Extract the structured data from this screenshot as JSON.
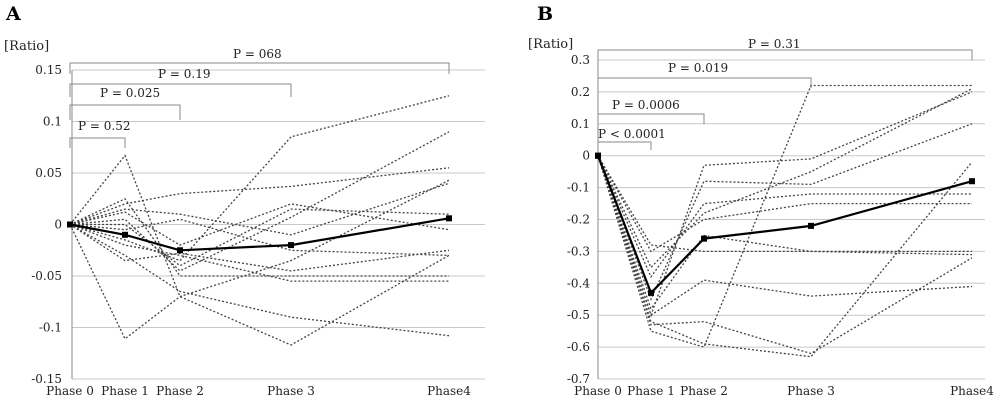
{
  "chart_data": [
    {
      "type": "line",
      "panel_label": "A",
      "ylabel": "[Ratio]",
      "categories": [
        "Phase 0",
        "Phase 1",
        "Phase 2",
        "Phase 3",
        "Phase4"
      ],
      "ylim": [
        -0.15,
        0.15
      ],
      "yticks": [
        -0.15,
        -0.1,
        -0.05,
        0,
        0.05,
        0.1,
        0.15
      ],
      "grid": true,
      "comparisons": [
        {
          "label": "P = 0.52",
          "to": 1
        },
        {
          "label": "P = 0.025",
          "to": 2
        },
        {
          "label": "P = 0.19",
          "to": 3
        },
        {
          "label": "P = 068",
          "to": 4
        }
      ],
      "series": [
        {
          "values": [
            0,
            0.067,
            -0.07,
            -0.117,
            -0.03
          ],
          "style": "dotted"
        },
        {
          "values": [
            0,
            -0.111,
            -0.07,
            -0.035,
            0.043
          ],
          "style": "dotted"
        },
        {
          "values": [
            0,
            0.025,
            -0.05,
            -0.05,
            -0.05
          ],
          "style": "dotted"
        },
        {
          "values": [
            0,
            0.02,
            0.03,
            0.037,
            0.055
          ],
          "style": "dotted"
        },
        {
          "values": [
            0,
            -0.015,
            -0.035,
            0.085,
            0.125
          ],
          "style": "dotted"
        },
        {
          "values": [
            0,
            0.005,
            -0.045,
            0.007,
            0.09
          ],
          "style": "dotted"
        },
        {
          "values": [
            0,
            -0.02,
            -0.03,
            -0.055,
            -0.055
          ],
          "style": "dotted"
        },
        {
          "values": [
            0,
            -0.03,
            -0.065,
            -0.09,
            -0.108
          ],
          "style": "dotted"
        },
        {
          "values": [
            0,
            0.012,
            -0.02,
            0.02,
            -0.005
          ],
          "style": "dotted"
        },
        {
          "values": [
            0,
            -0.005,
            0.005,
            -0.025,
            -0.03
          ],
          "style": "dotted"
        },
        {
          "values": [
            0,
            0.015,
            0.01,
            -0.01,
            0.04
          ],
          "style": "dotted"
        },
        {
          "values": [
            0,
            -0.035,
            -0.028,
            -0.045,
            -0.025
          ],
          "style": "dotted"
        },
        {
          "values": [
            0,
            0.0,
            -0.04,
            0.015,
            0.01
          ],
          "style": "dotted"
        },
        {
          "values": [
            0,
            -0.01,
            -0.025,
            -0.02,
            0.006
          ],
          "style": "solid-mean"
        }
      ]
    },
    {
      "type": "line",
      "panel_label": "B",
      "ylabel": "[Ratio]",
      "categories": [
        "Phase 0",
        "Phase 1",
        "Phase 2",
        "Phase 3",
        "Phase4"
      ],
      "ylim": [
        -0.7,
        0.3
      ],
      "yticks": [
        -0.7,
        -0.6,
        -0.5,
        -0.4,
        -0.3,
        -0.2,
        -0.1,
        0,
        0.1,
        0.2,
        0.3
      ],
      "grid": true,
      "comparisons": [
        {
          "label": "P < 0.0001",
          "to": 1
        },
        {
          "label": "P = 0.0006",
          "to": 2
        },
        {
          "label": "P = 0.019",
          "to": 3
        },
        {
          "label": "P = 0.31",
          "to": 4
        }
      ],
      "series": [
        {
          "values": [
            0,
            -0.55,
            -0.6,
            0.22,
            0.22
          ],
          "style": "dotted"
        },
        {
          "values": [
            0,
            -0.52,
            -0.59,
            -0.63,
            -0.02
          ],
          "style": "dotted"
        },
        {
          "values": [
            0,
            -0.5,
            -0.03,
            -0.01,
            0.2
          ],
          "style": "dotted"
        },
        {
          "values": [
            0,
            -0.45,
            -0.08,
            -0.09,
            0.1
          ],
          "style": "dotted"
        },
        {
          "values": [
            0,
            -0.38,
            -0.15,
            -0.12,
            -0.12
          ],
          "style": "dotted"
        },
        {
          "values": [
            0,
            -0.3,
            -0.2,
            -0.15,
            -0.15
          ],
          "style": "dotted"
        },
        {
          "values": [
            0,
            -0.28,
            -0.3,
            -0.3,
            -0.3
          ],
          "style": "dotted"
        },
        {
          "values": [
            0,
            -0.5,
            -0.39,
            -0.44,
            -0.41
          ],
          "style": "dotted"
        },
        {
          "values": [
            0,
            -0.53,
            -0.52,
            -0.62,
            -0.32
          ],
          "style": "dotted"
        },
        {
          "values": [
            0,
            -0.35,
            -0.18,
            -0.05,
            0.21
          ],
          "style": "dotted"
        },
        {
          "values": [
            0,
            -0.48,
            -0.25,
            -0.3,
            -0.31
          ],
          "style": "dotted"
        },
        {
          "values": [
            0,
            -0.43,
            -0.26,
            -0.22,
            -0.08
          ],
          "style": "solid-mean"
        }
      ]
    }
  ]
}
